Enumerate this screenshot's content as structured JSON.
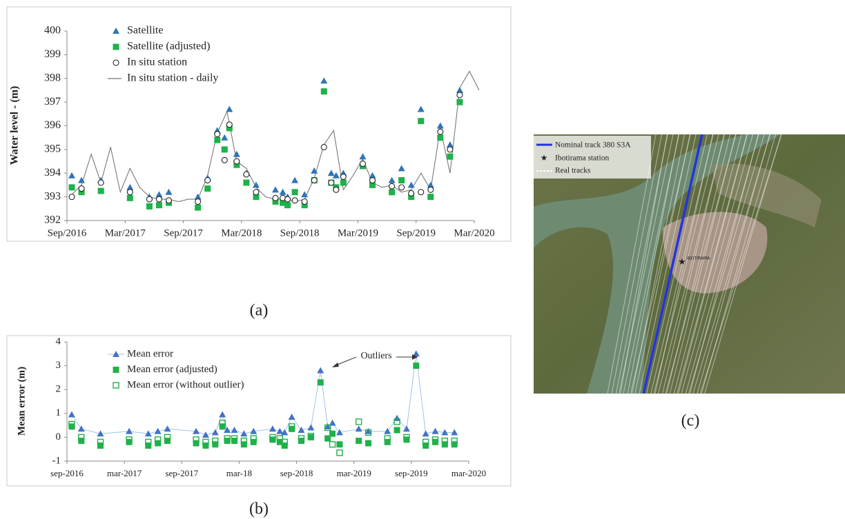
{
  "chart_data": [
    {
      "type": "line",
      "y_label": "Water level -  (m)",
      "x": [
        "2016-09",
        "2016-10",
        "2016-12",
        "2017-03",
        "2017-05",
        "2017-06",
        "2017-07",
        "2017-10",
        "2017-11",
        "2017-12",
        "2018-01",
        "2018-01",
        "2018-02",
        "2018-03",
        "2018-04",
        "2018-06",
        "2018-07",
        "2018-07",
        "2018-08",
        "2018-09",
        "2018-10",
        "2018-11",
        "2018-12",
        "2018-12",
        "2019-01",
        "2019-03",
        "2019-04",
        "2019-06",
        "2019-07",
        "2019-08",
        "2019-09",
        "2019-10",
        "2019-11",
        "2019-12",
        "2020-01"
      ],
      "xlim": [
        "2016-09",
        "2020-03"
      ],
      "xticks": [
        {
          "value": "2016-09",
          "label": "Sep/2016"
        },
        {
          "value": "2017-03",
          "label": "Mar/2017"
        },
        {
          "value": "2017-09",
          "label": "Sep/2017"
        },
        {
          "value": "2018-03",
          "label": "Mar/2018"
        },
        {
          "value": "2018-09",
          "label": "Sep/2018"
        },
        {
          "value": "2019-03",
          "label": "Mar/2019"
        },
        {
          "value": "2019-09",
          "label": "Sep/2019"
        },
        {
          "value": "2020-03",
          "label": "Mar/2020"
        }
      ],
      "ylim": [
        392,
        400
      ],
      "yticks": [
        392,
        393,
        394,
        395,
        396,
        397,
        398,
        399,
        400
      ],
      "series": [
        {
          "name": "Satellite",
          "color": "#2e75b6",
          "marker": "triangle",
          "values": [
            393.9,
            393.7,
            393.7,
            393.4,
            393.0,
            393.1,
            393.2,
            393.0,
            393.8,
            395.8,
            395.5,
            396.7,
            394.8,
            394.0,
            393.5,
            393.3,
            393.2,
            393.0,
            393.7,
            393.1,
            394.1,
            397.9,
            394.0,
            393.9,
            394.0,
            394.7,
            393.9,
            393.7,
            394.2,
            393.5,
            396.7,
            393.5,
            396.0,
            395.2,
            397.5
          ]
        },
        {
          "name": "Satellite (adjusted)",
          "color": "#1fb14a",
          "marker": "square",
          "values": [
            393.4,
            393.2,
            393.25,
            392.95,
            392.6,
            392.65,
            392.75,
            392.55,
            393.35,
            395.4,
            395.0,
            395.9,
            394.35,
            393.6,
            393.0,
            392.8,
            392.75,
            392.65,
            393.2,
            392.65,
            393.7,
            397.45,
            393.6,
            393.4,
            393.6,
            394.3,
            393.5,
            393.2,
            393.7,
            393.0,
            396.2,
            393.0,
            395.5,
            394.7,
            397.0
          ]
        },
        {
          "name": "In situ station",
          "color": "#222222",
          "marker": "circle",
          "values": [
            393.0,
            393.35,
            393.6,
            393.2,
            392.9,
            392.9,
            392.85,
            392.8,
            393.7,
            395.65,
            394.55,
            396.05,
            394.5,
            393.95,
            393.2,
            392.95,
            392.95,
            392.9,
            392.85,
            392.8,
            393.7,
            395.1,
            393.6,
            393.3,
            393.85,
            394.4,
            393.7,
            393.45,
            393.4,
            393.15,
            393.2,
            393.3,
            395.75,
            395.0,
            397.3
          ]
        },
        {
          "name": "In situ station - daily",
          "color": "#777777",
          "marker": "line",
          "x": [
            "2016-09",
            "2016-10",
            "2016-11",
            "2016-12",
            "2017-01",
            "2017-02",
            "2017-03",
            "2017-04",
            "2017-05",
            "2017-06",
            "2017-07",
            "2017-08",
            "2017-09",
            "2017-10",
            "2017-11",
            "2017-12",
            "2018-01",
            "2018-02",
            "2018-03",
            "2018-04",
            "2018-05",
            "2018-06",
            "2018-07",
            "2018-08",
            "2018-09",
            "2018-10",
            "2018-11",
            "2018-12",
            "2019-01",
            "2019-02",
            "2019-03",
            "2019-04",
            "2019-05",
            "2019-06",
            "2019-07",
            "2019-08",
            "2019-09",
            "2019-10",
            "2019-11",
            "2019-12",
            "2020-01",
            "2020-02",
            "2020-03"
          ],
          "values": [
            393.1,
            393.5,
            394.8,
            393.6,
            395.1,
            393.2,
            394.2,
            393.4,
            393.0,
            392.9,
            392.9,
            392.8,
            392.9,
            392.9,
            393.9,
            395.7,
            396.6,
            394.5,
            394.2,
            393.4,
            393.0,
            392.9,
            392.9,
            392.8,
            392.9,
            393.8,
            395.2,
            395.8,
            393.3,
            393.9,
            394.6,
            393.6,
            393.4,
            393.5,
            393.2,
            393.3,
            394.0,
            393.3,
            395.9,
            394.0,
            397.6,
            398.3,
            397.5
          ]
        }
      ]
    },
    {
      "type": "line",
      "y_label": "Mean error (m)",
      "x": [
        "2016-09",
        "2016-10",
        "2016-12",
        "2017-03",
        "2017-05",
        "2017-06",
        "2017-07",
        "2017-10",
        "2017-11",
        "2017-12",
        "2018-01",
        "2018-01",
        "2018-02",
        "2018-03",
        "2018-04",
        "2018-06",
        "2018-07",
        "2018-07",
        "2018-08",
        "2018-09",
        "2018-10",
        "2018-11",
        "2018-12",
        "2018-12",
        "2019-01",
        "2019-03",
        "2019-04",
        "2019-06",
        "2019-07",
        "2019-08",
        "2019-09",
        "2019-10",
        "2019-11",
        "2019-12",
        "2020-01"
      ],
      "xlim": [
        "2016-09",
        "2020-03"
      ],
      "xticks": [
        {
          "value": "2016-09",
          "label": "sep-2016"
        },
        {
          "value": "2017-03",
          "label": "mar-2017"
        },
        {
          "value": "2017-09",
          "label": "sep-2017"
        },
        {
          "value": "2018-03",
          "label": "mar-18"
        },
        {
          "value": "2018-09",
          "label": "sep-2018"
        },
        {
          "value": "2019-03",
          "label": "mar-2019"
        },
        {
          "value": "2019-09",
          "label": "sep-2019"
        },
        {
          "value": "2020-03",
          "label": "mar-2020"
        }
      ],
      "ylim": [
        -1,
        4
      ],
      "yticks": [
        -1,
        0,
        1,
        2,
        3,
        4
      ],
      "annotation": "Outliers",
      "series": [
        {
          "name": "Mean error",
          "color": "#4472c4",
          "marker": "triangle",
          "connect": "#9dc3e6",
          "values": [
            0.95,
            0.35,
            0.15,
            0.25,
            0.15,
            0.25,
            0.35,
            0.25,
            0.1,
            0.2,
            0.95,
            0.3,
            0.3,
            0.15,
            0.25,
            0.35,
            0.25,
            0.2,
            0.85,
            0.3,
            0.4,
            2.8,
            0.45,
            0.6,
            0.2,
            0.35,
            0.25,
            0.25,
            0.8,
            0.35,
            3.5,
            0.15,
            0.25,
            0.2,
            0.2
          ]
        },
        {
          "name": "Mean error (adjusted)",
          "color": "#1fb14a",
          "marker": "square",
          "values": [
            0.45,
            -0.15,
            -0.35,
            -0.2,
            -0.35,
            -0.25,
            -0.15,
            -0.25,
            -0.35,
            -0.3,
            0.45,
            -0.15,
            -0.15,
            -0.3,
            -0.2,
            -0.1,
            -0.2,
            -0.35,
            0.35,
            -0.15,
            0.0,
            2.3,
            -0.05,
            0.15,
            -0.3,
            -0.15,
            -0.25,
            -0.2,
            0.3,
            -0.1,
            3.0,
            -0.35,
            -0.2,
            -0.3,
            -0.3
          ]
        },
        {
          "name": "Mean error (without outlier)",
          "color": "#1fb14a",
          "marker": "square-open",
          "values": [
            0.55,
            0.0,
            -0.2,
            -0.1,
            -0.2,
            -0.1,
            0.0,
            -0.1,
            -0.2,
            -0.15,
            0.6,
            -0.05,
            -0.05,
            -0.15,
            -0.05,
            0.0,
            -0.05,
            -0.2,
            0.45,
            -0.05,
            0.05,
            null,
            0.4,
            -0.3,
            -0.65,
            0.65,
            0.2,
            -0.05,
            0.65,
            0.0,
            null,
            -0.2,
            -0.1,
            -0.15,
            -0.15
          ]
        }
      ]
    }
  ],
  "panels": [
    "(a)",
    "(b)",
    "(c)"
  ],
  "map": {
    "legend": [
      "Nominal track 380 S3A",
      "Ibotirama station",
      "Real tracks"
    ],
    "place_label": "IBOTIRAMA"
  }
}
